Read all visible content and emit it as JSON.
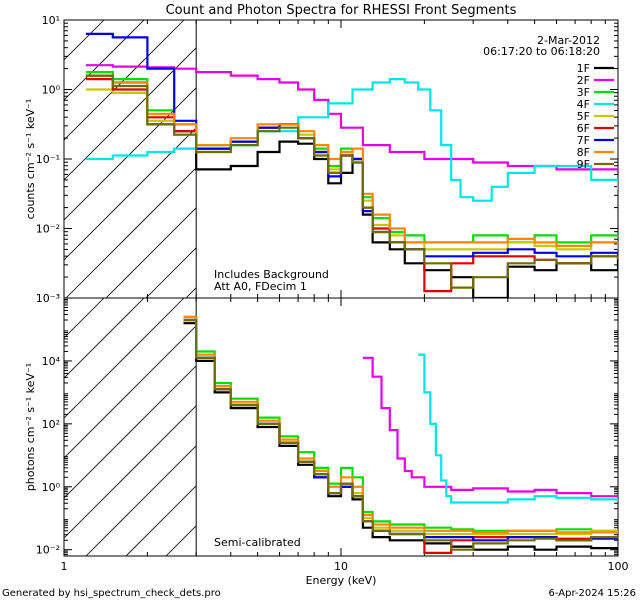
{
  "chart_data": [
    {
      "type": "line",
      "title": "Count and Photon Spectra for RHESSI Front Segments",
      "xlabel": "",
      "ylabel": "counts cm⁻² s⁻¹ keV⁻¹",
      "xscale": "log",
      "yscale": "log",
      "xlim": [
        1,
        100
      ],
      "ylim_log10": [
        -3,
        1
      ],
      "x_ticks": [],
      "y_ticks": [
        "10⁻³",
        "10⁻²",
        "10⁻¹",
        "10⁰",
        "10¹"
      ],
      "annotations": [
        "Includes Background",
        "Att A0, FDecim 1"
      ],
      "date": "2-Mar-2012",
      "time_range": "06:17:20 to 06:18:20",
      "legend_position": "top-right",
      "threshold_keV": 3,
      "series": [
        {
          "name": "1F",
          "color": "#000000",
          "x": [
            1.2,
            1.5,
            2,
            2.5,
            3,
            4,
            5,
            6,
            7,
            8,
            9,
            10,
            11,
            12,
            13,
            15,
            17,
            20,
            25,
            30,
            40,
            50,
            60,
            80,
            100
          ],
          "log10y": [
            0.2,
            0.1,
            -0.5,
            -0.6,
            -1.15,
            -1.1,
            -0.9,
            -0.75,
            -0.78,
            -1.0,
            -1.35,
            -1.2,
            -1.0,
            -1.8,
            -2.2,
            -2.3,
            -2.5,
            -2.6,
            -2.7,
            -3.0,
            -2.55,
            -2.6,
            -2.5,
            -2.6,
            -2.4
          ]
        },
        {
          "name": "2F",
          "color": "#e600e6",
          "x": [
            1.2,
            1.5,
            2,
            2.5,
            3,
            4,
            5,
            6,
            7,
            8,
            9,
            10,
            12,
            15,
            20,
            30,
            40,
            50,
            60,
            80,
            100
          ],
          "log10y": [
            0.35,
            0.33,
            0.32,
            0.3,
            0.25,
            0.2,
            0.15,
            0.1,
            0.0,
            -0.15,
            -0.35,
            -0.55,
            -0.8,
            -0.9,
            -1.0,
            -1.05,
            -1.1,
            -1.1,
            -1.15,
            -1.15,
            -1.2
          ]
        },
        {
          "name": "3F",
          "color": "#00e000",
          "x": [
            1.2,
            1.5,
            2,
            2.5,
            3,
            4,
            5,
            6,
            7,
            8,
            9,
            10,
            11,
            12,
            13,
            15,
            17,
            20,
            25,
            30,
            40,
            50,
            60,
            80,
            100
          ],
          "log10y": [
            0.25,
            0.15,
            -0.3,
            -0.5,
            -0.85,
            -0.75,
            -0.55,
            -0.5,
            -0.7,
            -0.85,
            -1.1,
            -0.85,
            -1.0,
            -1.55,
            -1.85,
            -2.05,
            -2.1,
            -2.2,
            -2.2,
            -2.1,
            -2.2,
            -2.1,
            -2.2,
            -2.1,
            -2.15
          ]
        },
        {
          "name": "4F",
          "color": "#00e6e6",
          "x": [
            1.2,
            1.5,
            2,
            2.5,
            3,
            5,
            7,
            9,
            11,
            13,
            15,
            17,
            19,
            21,
            23,
            25,
            27,
            30,
            35,
            40,
            50,
            60,
            80,
            100
          ],
          "log10y": [
            -1.0,
            -0.95,
            -0.9,
            -0.85,
            -0.8,
            -0.6,
            -0.4,
            -0.2,
            0.0,
            0.1,
            0.15,
            0.1,
            0.0,
            -0.3,
            -0.8,
            -1.3,
            -1.55,
            -1.6,
            -1.4,
            -1.2,
            -1.1,
            -1.1,
            -1.3,
            -1.45
          ]
        },
        {
          "name": "5F",
          "color": "#c8c800",
          "x": [
            1.2,
            1.5,
            2,
            2.5,
            3,
            4,
            5,
            6,
            7,
            8,
            9,
            10,
            11,
            12,
            13,
            15,
            17,
            20,
            25,
            30,
            40,
            50,
            60,
            80,
            100
          ],
          "log10y": [
            0.0,
            -0.05,
            -0.45,
            -0.65,
            -0.9,
            -0.75,
            -0.55,
            -0.5,
            -0.65,
            -0.9,
            -1.15,
            -0.9,
            -1.0,
            -1.6,
            -1.95,
            -2.1,
            -2.2,
            -2.3,
            -2.3,
            -2.3,
            -2.2,
            -2.25,
            -2.3,
            -2.2,
            -2.3
          ]
        },
        {
          "name": "6F",
          "color": "#e00000",
          "x": [
            1.2,
            1.5,
            2,
            2.5,
            3,
            4,
            5,
            6,
            7,
            8,
            9,
            10,
            11,
            12,
            13,
            15,
            17,
            20,
            25,
            30,
            40,
            50,
            60,
            80,
            100
          ],
          "log10y": [
            0.15,
            0.0,
            -0.4,
            -0.6,
            -0.85,
            -0.75,
            -0.55,
            -0.5,
            -0.7,
            -0.9,
            -1.2,
            -0.95,
            -1.05,
            -1.7,
            -2.0,
            -2.2,
            -2.3,
            -2.9,
            -2.5,
            -2.4,
            -2.4,
            -2.45,
            -2.5,
            -2.4,
            -2.45
          ]
        },
        {
          "name": "7F",
          "color": "#0000e6",
          "x": [
            1.2,
            1.5,
            2,
            2.5,
            3,
            4,
            5,
            6,
            7,
            8,
            9,
            10,
            11,
            12,
            13,
            15,
            17,
            20,
            25,
            30,
            40,
            50,
            60,
            80,
            100
          ],
          "log10y": [
            0.8,
            0.75,
            0.3,
            -0.45,
            -0.85,
            -0.75,
            -0.55,
            -0.5,
            -0.7,
            -0.9,
            -1.25,
            -0.95,
            -1.0,
            -1.75,
            -2.05,
            -2.2,
            -2.3,
            -2.4,
            -2.4,
            -2.35,
            -2.3,
            -2.35,
            -2.4,
            -2.35,
            -2.4
          ]
        },
        {
          "name": "8F",
          "color": "#ff8800",
          "x": [
            1.2,
            1.5,
            2,
            2.5,
            3,
            4,
            5,
            6,
            7,
            8,
            9,
            10,
            11,
            12,
            13,
            15,
            17,
            20,
            25,
            30,
            40,
            50,
            60,
            80,
            100
          ],
          "log10y": [
            0.2,
            0.1,
            -0.35,
            -0.5,
            -0.8,
            -0.7,
            -0.5,
            -0.5,
            -0.6,
            -0.8,
            -1.0,
            -0.9,
            -0.85,
            -1.5,
            -1.8,
            -2.0,
            -2.2,
            -2.2,
            -2.2,
            -2.2,
            -2.15,
            -2.2,
            -2.25,
            -2.2,
            -2.25
          ]
        },
        {
          "name": "9F",
          "color": "#6e6e00",
          "x": [
            1.2,
            1.5,
            2,
            2.5,
            3,
            4,
            5,
            6,
            7,
            8,
            9,
            10,
            11,
            12,
            13,
            15,
            17,
            20,
            25,
            30,
            40,
            50,
            60,
            80,
            100
          ],
          "log10y": [
            0.2,
            0.05,
            -0.5,
            -0.65,
            -0.9,
            -0.8,
            -0.6,
            -0.55,
            -0.7,
            -0.95,
            -1.2,
            -0.95,
            -1.05,
            -1.7,
            -2.05,
            -2.2,
            -2.3,
            -2.5,
            -2.85,
            -2.7,
            -2.5,
            -2.45,
            -2.5,
            -2.4,
            -2.45
          ]
        }
      ]
    },
    {
      "type": "line",
      "title": "",
      "xlabel": "Energy (keV)",
      "ylabel": "photons cm⁻² s⁻¹ keV⁻¹",
      "xscale": "log",
      "yscale": "log",
      "xlim": [
        1,
        100
      ],
      "ylim_log10": [
        -2.2,
        6.0
      ],
      "x_ticks": [
        "1",
        "10",
        "100"
      ],
      "y_ticks": [
        "10⁻²",
        "10⁰",
        "10²",
        "10⁴"
      ],
      "annotations": [
        "Semi-calibrated"
      ],
      "threshold_keV": 3,
      "series": [
        {
          "name": "1F",
          "color": "#000000",
          "x": [
            2.7,
            3,
            3.5,
            4,
            5,
            6,
            7,
            8,
            9,
            10,
            11,
            12,
            13,
            15,
            20,
            25,
            30,
            40,
            50,
            60,
            80,
            100
          ],
          "log10y": [
            5.2,
            4.0,
            3.0,
            2.5,
            1.9,
            1.3,
            0.7,
            0.3,
            -0.3,
            0.0,
            -0.4,
            -1.3,
            -1.6,
            -1.7,
            -1.8,
            -1.9,
            -2.0,
            -1.9,
            -2.0,
            -1.9,
            -1.95,
            -2.0
          ]
        },
        {
          "name": "2F",
          "color": "#e600e6",
          "x": [
            12,
            13,
            14,
            15,
            16,
            17,
            18,
            20,
            25,
            30,
            40,
            50,
            60,
            80,
            100
          ],
          "log10y": [
            4.1,
            3.5,
            2.5,
            1.8,
            0.9,
            0.5,
            0.3,
            0.0,
            -0.1,
            -0.05,
            -0.15,
            -0.1,
            -0.2,
            -0.3,
            -0.35
          ]
        },
        {
          "name": "3F",
          "color": "#00e000",
          "x": [
            2.7,
            3,
            3.5,
            4,
            5,
            6,
            7,
            8,
            9,
            10,
            11,
            12,
            13,
            15,
            20,
            25,
            30,
            40,
            50,
            60,
            80,
            100
          ],
          "log10y": [
            5.4,
            4.3,
            3.3,
            2.8,
            2.2,
            1.6,
            1.1,
            0.6,
            0.1,
            0.6,
            0.3,
            -0.8,
            -1.1,
            -1.2,
            -1.3,
            -1.35,
            -1.4,
            -1.4,
            -1.4,
            -1.35,
            -1.4,
            -1.5
          ]
        },
        {
          "name": "4F",
          "color": "#00e6e6",
          "x": [
            19,
            20,
            21,
            22,
            23,
            24,
            25,
            27,
            30,
            40,
            50,
            60,
            80,
            100
          ],
          "log10y": [
            4.2,
            3.0,
            2.0,
            1.0,
            0.2,
            -0.3,
            -0.5,
            -0.5,
            -0.5,
            -0.4,
            -0.3,
            -0.35,
            -0.4,
            -0.45
          ]
        },
        {
          "name": "5F",
          "color": "#c8c800",
          "x": [
            2.7,
            3,
            3.5,
            4,
            5,
            6,
            7,
            8,
            9,
            10,
            11,
            12,
            13,
            15,
            20,
            25,
            30,
            40,
            50,
            60,
            80,
            100
          ],
          "log10y": [
            5.3,
            4.1,
            3.1,
            2.6,
            2.0,
            1.4,
            0.8,
            0.4,
            -0.2,
            0.1,
            -0.2,
            -1.0,
            -1.3,
            -1.4,
            -1.5,
            -1.5,
            -1.5,
            -1.5,
            -1.5,
            -1.5,
            -1.4,
            -1.4
          ]
        },
        {
          "name": "6F",
          "color": "#e00000",
          "x": [
            2.7,
            3,
            3.5,
            4,
            5,
            6,
            7,
            8,
            9,
            10,
            11,
            12,
            13,
            15,
            20,
            25,
            30,
            40,
            50,
            60,
            80,
            100
          ],
          "log10y": [
            5.3,
            4.1,
            3.1,
            2.6,
            2.0,
            1.4,
            0.8,
            0.4,
            -0.2,
            0.1,
            -0.3,
            -1.1,
            -1.4,
            -1.5,
            -2.1,
            -1.7,
            -1.6,
            -1.6,
            -1.6,
            -1.65,
            -1.6,
            -1.6
          ]
        },
        {
          "name": "7F",
          "color": "#0000e6",
          "x": [
            2.7,
            3,
            3.5,
            4,
            5,
            6,
            7,
            8,
            9,
            10,
            11,
            12,
            13,
            15,
            20,
            25,
            30,
            40,
            50,
            60,
            80,
            100
          ],
          "log10y": [
            5.3,
            4.1,
            3.1,
            2.6,
            2.0,
            1.4,
            0.8,
            0.3,
            -0.2,
            0.0,
            -0.3,
            -1.1,
            -1.4,
            -1.5,
            -1.6,
            -1.6,
            -1.7,
            -1.6,
            -1.6,
            -1.7,
            -1.65,
            -1.7
          ]
        },
        {
          "name": "8F",
          "color": "#ff8800",
          "x": [
            2.7,
            3,
            3.5,
            4,
            5,
            6,
            7,
            8,
            9,
            10,
            11,
            12,
            13,
            15,
            20,
            25,
            30,
            40,
            50,
            60,
            80,
            100
          ],
          "log10y": [
            5.4,
            4.2,
            3.2,
            2.7,
            2.1,
            1.5,
            0.9,
            0.5,
            0.0,
            0.3,
            0.0,
            -0.9,
            -1.2,
            -1.3,
            -1.4,
            -1.4,
            -1.45,
            -1.4,
            -1.4,
            -1.45,
            -1.45,
            -1.5
          ]
        },
        {
          "name": "9F",
          "color": "#6e6e00",
          "x": [
            2.7,
            3,
            3.5,
            4,
            5,
            6,
            7,
            8,
            9,
            10,
            11,
            12,
            13,
            15,
            20,
            25,
            30,
            40,
            50,
            60,
            80,
            100
          ],
          "log10y": [
            5.3,
            4.1,
            3.1,
            2.6,
            2.0,
            1.4,
            0.8,
            0.4,
            -0.2,
            0.1,
            -0.3,
            -1.1,
            -1.4,
            -1.5,
            -1.7,
            -2.0,
            -1.8,
            -1.7,
            -1.65,
            -1.7,
            -1.6,
            -1.65
          ]
        }
      ]
    }
  ],
  "footer": {
    "generated_by": "Generated by hsi_spectrum_check_dets.pro",
    "timestamp": "6-Apr-2024 15:26"
  }
}
